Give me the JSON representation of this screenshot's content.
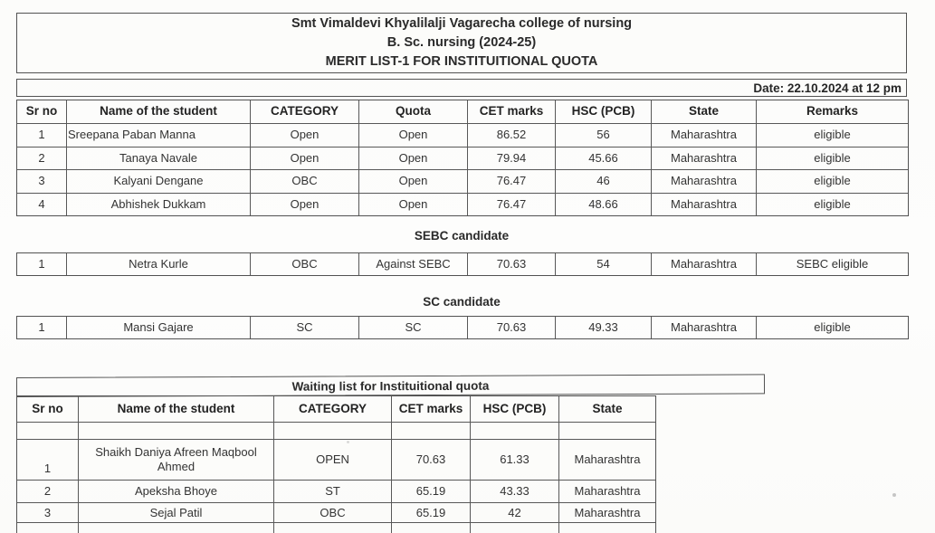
{
  "document": {
    "college_name": "Smt Vimaldevi Khyalilalji Vagarecha college of nursing",
    "course_line": "B. Sc. nursing (2024-25)",
    "list_title": "MERIT LIST-1 FOR INSTITUITIONAL QUOTA",
    "date_line": "Date: 22.10.2024 at 12 pm"
  },
  "merit_table": {
    "headers": [
      "Sr no",
      "Name of the student",
      "CATEGORY",
      "Quota",
      "CET marks",
      "HSC (PCB)",
      "State",
      "Remarks"
    ],
    "rows": [
      [
        "1",
        "Sreepana Paban Manna",
        "Open",
        "Open",
        "86.52",
        "56",
        "Maharashtra",
        "eligible"
      ],
      [
        "2",
        "Tanaya Navale",
        "Open",
        "Open",
        "79.94",
        "45.66",
        "Maharashtra",
        "eligible"
      ],
      [
        "3",
        "Kalyani Dengane",
        "OBC",
        "Open",
        "76.47",
        "46",
        "Maharashtra",
        "eligible"
      ],
      [
        "4",
        "Abhishek Dukkam",
        "Open",
        "Open",
        "76.47",
        "48.66",
        "Maharashtra",
        "eligible"
      ]
    ]
  },
  "sebc_section": {
    "label": "SEBC candidate",
    "rows": [
      [
        "1",
        "Netra Kurle",
        "OBC",
        "Against SEBC",
        "70.63",
        "54",
        "Maharashtra",
        "SEBC eligible"
      ]
    ]
  },
  "sc_section": {
    "label": "SC candidate",
    "rows": [
      [
        "1",
        "Mansi Gajare",
        "SC",
        "SC",
        "70.63",
        "49.33",
        "Maharashtra",
        "eligible"
      ]
    ]
  },
  "waiting_section": {
    "title": "Waiting list for Instituitional quota",
    "headers": [
      "Sr no",
      "Name of the student",
      "CATEGORY",
      "CET marks",
      "HSC (PCB)",
      "State"
    ],
    "rows": [
      [
        "",
        "",
        "",
        "",
        "",
        ""
      ],
      [
        "1",
        "Shaikh Daniya Afreen Maqbool Ahmed",
        "OPEN",
        "70.63",
        "61.33",
        "Maharashtra"
      ],
      [
        "2",
        "Apeksha Bhoye",
        "ST",
        "65.19",
        "43.33",
        "Maharashtra"
      ],
      [
        "3",
        "Sejal Patil",
        "OBC",
        "65.19",
        "42",
        "Maharashtra"
      ],
      [
        "",
        "",
        "",
        "",
        "",
        ""
      ]
    ]
  }
}
